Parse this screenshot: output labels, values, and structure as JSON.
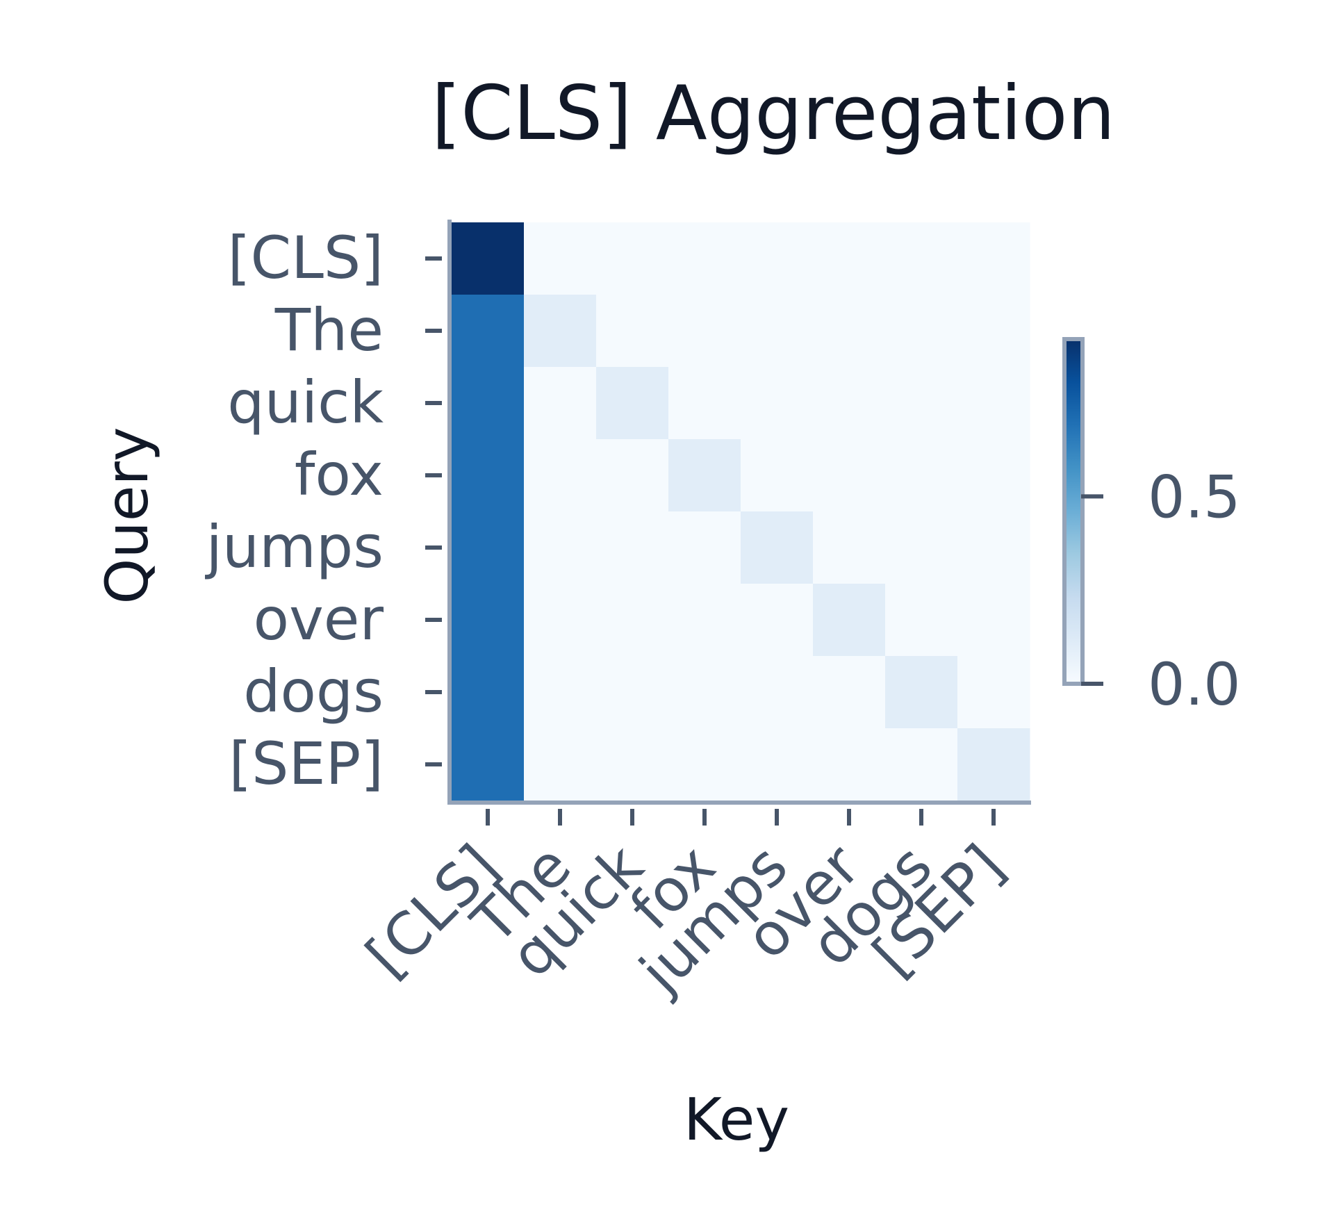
{
  "chart_data": {
    "type": "heatmap",
    "title": "[CLS] Aggregation",
    "xlabel": "Key",
    "ylabel": "Query",
    "x_categories": [
      "[CLS]",
      "The",
      "quick",
      "fox",
      "jumps",
      "over",
      "dogs",
      "[SEP]"
    ],
    "y_categories": [
      "[CLS]",
      "The",
      "quick",
      "fox",
      "jumps",
      "over",
      "dogs",
      "[SEP]"
    ],
    "values": [
      [
        0.92,
        0.01,
        0.01,
        0.01,
        0.01,
        0.01,
        0.01,
        0.01
      ],
      [
        0.7,
        0.1,
        0.01,
        0.01,
        0.01,
        0.01,
        0.01,
        0.01
      ],
      [
        0.7,
        0.01,
        0.1,
        0.01,
        0.01,
        0.01,
        0.01,
        0.01
      ],
      [
        0.7,
        0.01,
        0.01,
        0.1,
        0.01,
        0.01,
        0.01,
        0.01
      ],
      [
        0.7,
        0.01,
        0.01,
        0.01,
        0.1,
        0.01,
        0.01,
        0.01
      ],
      [
        0.7,
        0.01,
        0.01,
        0.01,
        0.01,
        0.1,
        0.01,
        0.01
      ],
      [
        0.7,
        0.01,
        0.01,
        0.01,
        0.01,
        0.01,
        0.1,
        0.01
      ],
      [
        0.7,
        0.01,
        0.01,
        0.01,
        0.01,
        0.01,
        0.01,
        0.1
      ]
    ],
    "colormap": "Blues",
    "colorbar": {
      "range": [
        0.0,
        0.92
      ],
      "ticks": [
        0.0,
        0.5
      ],
      "tick_labels": [
        "0.0",
        "0.5"
      ],
      "position": "right"
    },
    "grid": false,
    "legend": "none"
  }
}
